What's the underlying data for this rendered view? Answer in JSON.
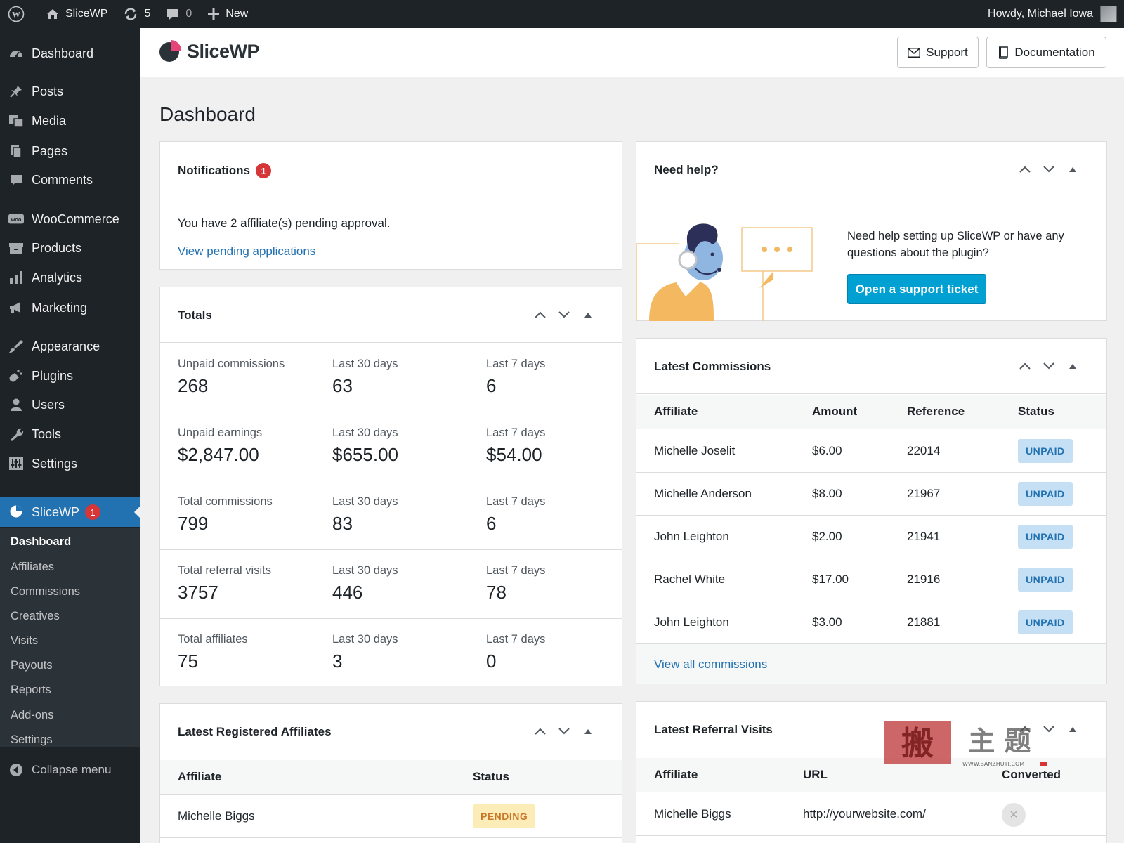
{
  "adminbar": {
    "site_name": "SliceWP",
    "updates_count": "5",
    "comments_count": "0",
    "new_label": "New",
    "howdy": "Howdy, Michael Iowa"
  },
  "sidebar": {
    "items": [
      {
        "label": "Dashboard",
        "icon": "dashboard-icon"
      },
      {
        "label": "Posts",
        "icon": "pin-icon"
      },
      {
        "label": "Media",
        "icon": "media-icon"
      },
      {
        "label": "Pages",
        "icon": "pages-icon"
      },
      {
        "label": "Comments",
        "icon": "comment-icon"
      },
      {
        "label": "WooCommerce",
        "icon": "woo-icon"
      },
      {
        "label": "Products",
        "icon": "products-icon"
      },
      {
        "label": "Analytics",
        "icon": "bar-chart-icon"
      },
      {
        "label": "Marketing",
        "icon": "megaphone-icon"
      },
      {
        "label": "Appearance",
        "icon": "brush-icon"
      },
      {
        "label": "Plugins",
        "icon": "plug-icon"
      },
      {
        "label": "Users",
        "icon": "user-icon"
      },
      {
        "label": "Tools",
        "icon": "wrench-icon"
      },
      {
        "label": "Settings",
        "icon": "sliders-icon"
      }
    ],
    "active": {
      "label": "SliceWP",
      "badge": "1",
      "icon": "slicewp-icon"
    },
    "submenu": [
      "Dashboard",
      "Affiliates",
      "Commissions",
      "Creatives",
      "Visits",
      "Payouts",
      "Reports",
      "Add-ons",
      "Settings"
    ],
    "collapse_label": "Collapse menu"
  },
  "header": {
    "logo_text": "SliceWP",
    "support_label": "Support",
    "documentation_label": "Documentation"
  },
  "page_title": "Dashboard",
  "notifications": {
    "title": "Notifications",
    "badge": "1",
    "text": "You have 2 affiliate(s) pending approval.",
    "link": "View pending applications"
  },
  "totals": {
    "title": "Totals",
    "rows": [
      {
        "label": "Unpaid commissions",
        "value": "268",
        "l30": "Last 30 days",
        "v30": "63",
        "l7": "Last 7 days",
        "v7": "6"
      },
      {
        "label": "Unpaid earnings",
        "value": "$2,847.00",
        "l30": "Last 30 days",
        "v30": "$655.00",
        "l7": "Last 7 days",
        "v7": "$54.00"
      },
      {
        "label": "Total commissions",
        "value": "799",
        "l30": "Last 30 days",
        "v30": "83",
        "l7": "Last 7 days",
        "v7": "6"
      },
      {
        "label": "Total referral visits",
        "value": "3757",
        "l30": "Last 30 days",
        "v30": "446",
        "l7": "Last 7 days",
        "v7": "78"
      },
      {
        "label": "Total affiliates",
        "value": "75",
        "l30": "Last 30 days",
        "v30": "3",
        "l7": "Last 7 days",
        "v7": "0"
      }
    ]
  },
  "latest_affiliates": {
    "title": "Latest Registered Affiliates",
    "columns": [
      "Affiliate",
      "Status"
    ],
    "rows": [
      {
        "affiliate": "Michelle Biggs",
        "status": "PENDING"
      }
    ]
  },
  "help": {
    "title": "Need help?",
    "text": "Need help setting up SliceWP or have any questions about the plugin?",
    "button": "Open a support ticket"
  },
  "commissions": {
    "title": "Latest Commissions",
    "columns": [
      "Affiliate",
      "Amount",
      "Reference",
      "Status"
    ],
    "rows": [
      {
        "affiliate": "Michelle Joselit",
        "amount": "$6.00",
        "reference": "22014",
        "status": "UNPAID"
      },
      {
        "affiliate": "Michelle Anderson",
        "amount": "$8.00",
        "reference": "21967",
        "status": "UNPAID"
      },
      {
        "affiliate": "John Leighton",
        "amount": "$2.00",
        "reference": "21941",
        "status": "UNPAID"
      },
      {
        "affiliate": "Rachel White",
        "amount": "$17.00",
        "reference": "21916",
        "status": "UNPAID"
      },
      {
        "affiliate": "John Leighton",
        "amount": "$3.00",
        "reference": "21881",
        "status": "UNPAID"
      }
    ],
    "view_all": "View all commissions"
  },
  "referral_visits": {
    "title": "Latest Referral Visits",
    "columns": [
      "Affiliate",
      "URL",
      "Converted"
    ],
    "rows": [
      {
        "affiliate": "Michelle Biggs",
        "url": "http://yourwebsite.com/",
        "converted": "no"
      }
    ]
  },
  "watermark": {
    "text": "搬主题",
    "url": "WWW.BANZHUTI.COM"
  },
  "colors": {
    "accent": "#2271b1",
    "admin_bg": "#1d2327",
    "button_blue": "#00a0d2",
    "badge_red": "#d63638",
    "logo_pink": "#e6457a"
  }
}
